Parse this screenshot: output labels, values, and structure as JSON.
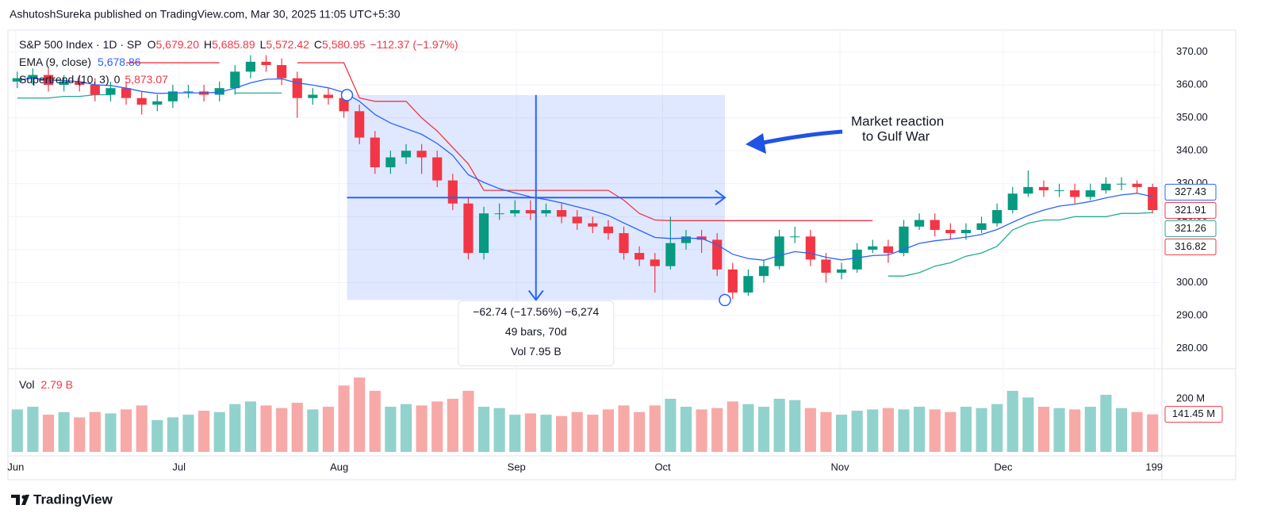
{
  "header": "AshutoshSureka published on TradingView.com, Mar 30, 2025 11:05 UTC+5:30",
  "footer": {
    "brand": "TradingView"
  },
  "chart_data": {
    "type": "candlestick",
    "legend": {
      "symbol": "S&P 500 Index · 1D · SP",
      "o_label": "O",
      "o": "5,679.20",
      "h_label": "H",
      "h": "5,685.89",
      "l_label": "L",
      "l": "5,572.42",
      "c_label": "C",
      "c": "5,580.95",
      "change": "−112.37 (−1.97%)",
      "color": "#f23645"
    },
    "up_color": "#089981",
    "down_color": "#f23645",
    "open": [
      361,
      362,
      363,
      360,
      361,
      360,
      357,
      359,
      356,
      354,
      355,
      358,
      358,
      357,
      359,
      364,
      367,
      366,
      362,
      356,
      357,
      356,
      352,
      344,
      335,
      338,
      340,
      338,
      331,
      324,
      309,
      321,
      321,
      322,
      321,
      322,
      320,
      318,
      317,
      315,
      309,
      307,
      305,
      312,
      314,
      313,
      304,
      297,
      302,
      305,
      314,
      314,
      307,
      303,
      304,
      310,
      311,
      309,
      317,
      319,
      316,
      315,
      316,
      318,
      322,
      327,
      329,
      328,
      328,
      326,
      328,
      330,
      330,
      329
    ],
    "high": [
      364,
      365,
      365,
      363,
      363,
      362,
      361,
      361,
      358,
      357,
      360,
      360,
      360,
      361,
      366,
      369,
      369,
      368,
      364,
      359,
      359,
      358,
      354,
      346,
      340,
      342,
      342,
      340,
      333,
      326,
      323,
      324,
      325,
      325,
      324,
      324,
      322,
      320,
      319,
      317,
      311,
      309,
      320,
      316,
      316,
      315,
      306,
      304,
      307,
      316,
      317,
      316,
      309,
      306,
      312,
      313,
      313,
      319,
      321,
      321,
      318,
      318,
      320,
      324,
      329,
      334,
      331,
      330,
      330,
      330,
      332,
      332,
      331,
      330
    ],
    "low": [
      359,
      360,
      358,
      358,
      358,
      355,
      355,
      354,
      351,
      352,
      353,
      356,
      355,
      355,
      357,
      362,
      364,
      360,
      350,
      354,
      354,
      350,
      342,
      333,
      333,
      336,
      333,
      329,
      322,
      307,
      307,
      319,
      320,
      319,
      320,
      318,
      316,
      315,
      313,
      307,
      305,
      297,
      304,
      310,
      309,
      302,
      295,
      296,
      300,
      304,
      312,
      305,
      300,
      301,
      303,
      309,
      306,
      308,
      316,
      314,
      313,
      313,
      315,
      317,
      321,
      326,
      326,
      326,
      324,
      325,
      327,
      328,
      327,
      321
    ],
    "close": [
      362,
      363,
      360,
      361,
      360,
      357,
      359,
      356,
      354,
      355,
      358,
      358,
      357,
      359,
      364,
      367,
      366,
      362,
      356,
      357,
      356,
      352,
      344,
      335,
      338,
      340,
      338,
      331,
      324,
      309,
      321,
      321,
      322,
      321,
      322,
      320,
      318,
      317,
      315,
      309,
      307,
      305,
      312,
      314,
      313,
      304,
      297,
      302,
      305,
      314,
      314,
      307,
      303,
      304,
      310,
      311,
      309,
      317,
      319,
      316,
      315,
      316,
      318,
      322,
      327,
      329,
      328,
      328,
      326,
      328,
      330,
      330,
      329,
      322
    ],
    "series": [
      {
        "name": "EMA (9, close)",
        "value_label": "5,678.86",
        "color": "#2962ff",
        "values": [
          361.5,
          362,
          361.5,
          361.3,
          361,
          360,
          359.8,
          359,
          358,
          357.4,
          357.5,
          357.6,
          357.5,
          357.8,
          359,
          360.6,
          361.7,
          361.8,
          360.6,
          359.9,
          359.1,
          357.7,
          355,
          351,
          348.4,
          346.7,
          345,
          342.2,
          338.6,
          332.7,
          330.4,
          328.5,
          327.2,
          326,
          325.2,
          324.2,
          323,
          321.8,
          320.4,
          318.1,
          315.9,
          313.7,
          313.4,
          313.5,
          313.4,
          311.5,
          308.6,
          307.3,
          306.8,
          308.2,
          309.4,
          308.9,
          307.7,
          306.9,
          307.5,
          308.2,
          308.4,
          310.1,
          311.9,
          312.7,
          313.2,
          313.8,
          314.6,
          316.1,
          318.3,
          320.4,
          322,
          323.2,
          323.8,
          324.6,
          325.7,
          326.6,
          327.1,
          326.1
        ]
      },
      {
        "name": "Supertrend (10, 3)",
        "value_labels": [
          "0",
          "5,873.07"
        ],
        "color": "#f23645",
        "up_color": "#22ab94",
        "up_values": [
          356,
          356,
          356,
          356.5,
          356.5,
          357,
          357,
          null,
          null,
          null,
          null,
          null,
          null,
          null,
          357.5,
          357.5,
          357.5,
          357.5,
          null,
          null,
          null,
          null,
          null,
          null,
          null,
          null,
          null,
          null,
          null,
          null,
          null,
          null,
          null,
          null,
          null,
          null,
          null,
          null,
          null,
          null,
          null,
          null,
          null,
          null,
          null,
          null,
          null,
          null,
          null,
          null,
          null,
          null,
          null,
          null,
          null,
          null,
          302,
          302,
          303,
          305,
          306,
          308,
          309,
          311,
          316,
          318,
          319,
          319,
          320,
          320,
          320,
          321,
          321,
          321.26
        ],
        "down_values": [
          null,
          null,
          null,
          null,
          null,
          null,
          null,
          366.7,
          366.7,
          366.7,
          366.7,
          366.7,
          366.7,
          366.7,
          null,
          null,
          null,
          null,
          366.7,
          366.7,
          366.7,
          366.7,
          356,
          355,
          355,
          355,
          350,
          346,
          341,
          336,
          328,
          328,
          328,
          328,
          328,
          328,
          328,
          328,
          328,
          325,
          321,
          319,
          318.8,
          318.8,
          318.8,
          318.8,
          318.8,
          318.8,
          318.8,
          318.8,
          318.8,
          318.8,
          318.8,
          318.8,
          318.8,
          318.8,
          null,
          null,
          null,
          null,
          null,
          null,
          null,
          null,
          null,
          null,
          null,
          null,
          null,
          null,
          null,
          null,
          null,
          null
        ]
      }
    ],
    "volume": {
      "name": "Vol",
      "value_label": "2.79 B",
      "up_color": "#92d2cc",
      "down_color": "#f7a9a7",
      "values": [
        160,
        170,
        140,
        150,
        130,
        150,
        145,
        160,
        175,
        120,
        130,
        140,
        155,
        150,
        180,
        190,
        175,
        165,
        185,
        160,
        170,
        250,
        280,
        230,
        170,
        180,
        175,
        190,
        200,
        230,
        170,
        165,
        140,
        145,
        140,
        135,
        150,
        140,
        160,
        175,
        150,
        175,
        200,
        170,
        160,
        165,
        190,
        180,
        170,
        200,
        195,
        165,
        150,
        140,
        155,
        160,
        165,
        160,
        170,
        160,
        150,
        170,
        165,
        180,
        230,
        205,
        170,
        165,
        160,
        170,
        215,
        165,
        150,
        141.45
      ],
      "ylim": [
        0,
        300
      ],
      "yticks": [
        {
          "value": 200,
          "label": "200 M"
        }
      ],
      "badge": {
        "value": 141.45,
        "label": "141.45 M",
        "color": "#f23645"
      }
    },
    "xlim": [
      -0.5,
      73.6
    ],
    "xticks": [
      {
        "value": -0.1,
        "label": "Jun"
      },
      {
        "value": 10.4,
        "label": "Jul"
      },
      {
        "value": 20.7,
        "label": "Aug"
      },
      {
        "value": 32.1,
        "label": "Sep"
      },
      {
        "value": 41.5,
        "label": "Oct"
      },
      {
        "value": 52.9,
        "label": "Nov"
      },
      {
        "value": 63.4,
        "label": "Dec"
      },
      {
        "value": 73.1,
        "label": "199"
      }
    ],
    "ylim": [
      273.9,
      376.6
    ],
    "yticks": [
      {
        "value": 280,
        "label": "280.00"
      },
      {
        "value": 290,
        "label": "290.00"
      },
      {
        "value": 300,
        "label": "300.00"
      },
      {
        "value": 310,
        "label": "310.00"
      },
      {
        "value": 320,
        "label": "320.00"
      },
      {
        "value": 330,
        "label": "330.00"
      },
      {
        "value": 340,
        "label": "340.00"
      },
      {
        "value": 350,
        "label": "350.00"
      },
      {
        "value": 360,
        "label": "360.00"
      },
      {
        "value": 370,
        "label": "370.00"
      }
    ],
    "grid": true,
    "price_badges": [
      {
        "value": 327.43,
        "color": "#2962ff"
      },
      {
        "value": 321.91,
        "color": "#f23645"
      },
      {
        "value": 321.26,
        "color": "#22ab94"
      },
      {
        "value": 316.82,
        "color": "#f23645"
      }
    ],
    "measure": {
      "color": "#2962ff",
      "start": {
        "x": 21.2,
        "price": 356.9
      },
      "end": {
        "x": 45.5,
        "price": 294.7
      },
      "lines": [
        "−62.74 (−17.56%) −6,274",
        "49 bars, 70d",
        "Vol 7.95 B"
      ]
    },
    "annotation": [
      "Market reaction",
      "to Gulf War"
    ]
  }
}
